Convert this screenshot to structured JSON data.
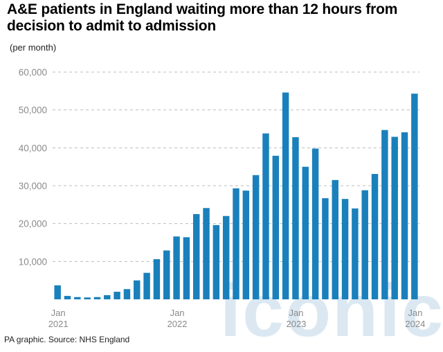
{
  "header": {
    "title": "A&E patients in England waiting more than 12 hours from decision to admit to admission",
    "unit": "(per month)"
  },
  "footer": {
    "source": "PA graphic. Source: NHS England"
  },
  "watermark": {
    "text": "iconic"
  },
  "colors": {
    "bar": "#1a80bb",
    "grid": "#bdbdbd",
    "tick_text": "#8a8a8a"
  },
  "chart_data": {
    "type": "bar",
    "title": "A&E patients in England waiting more than 12 hours from decision to admit to admission",
    "ylabel": "(per month)",
    "ylim": [
      0,
      60000
    ],
    "yticks": [
      10000,
      20000,
      30000,
      40000,
      50000,
      60000
    ],
    "ytick_labels": [
      "10,000",
      "20,000",
      "30,000",
      "40,000",
      "50,000",
      "60,000"
    ],
    "grid": true,
    "categories": [
      "Jan 2021",
      "Feb 2021",
      "Mar 2021",
      "Apr 2021",
      "May 2021",
      "Jun 2021",
      "Jul 2021",
      "Aug 2021",
      "Sep 2021",
      "Oct 2021",
      "Nov 2021",
      "Dec 2021",
      "Jan 2022",
      "Feb 2022",
      "Mar 2022",
      "Apr 2022",
      "May 2022",
      "Jun 2022",
      "Jul 2022",
      "Aug 2022",
      "Sep 2022",
      "Oct 2022",
      "Nov 2022",
      "Dec 2022",
      "Jan 2023",
      "Feb 2023",
      "Mar 2023",
      "Apr 2023",
      "May 2023",
      "Jun 2023",
      "Jul 2023",
      "Aug 2023",
      "Sep 2023",
      "Oct 2023",
      "Nov 2023",
      "Dec 2023",
      "Jan 2024"
    ],
    "values": [
      3700,
      900,
      600,
      500,
      600,
      1100,
      2000,
      2700,
      5000,
      7000,
      10600,
      12900,
      16600,
      16400,
      22500,
      24100,
      19600,
      22000,
      29300,
      28700,
      32800,
      43800,
      37900,
      54600,
      42800,
      35000,
      39800,
      26700,
      31500,
      26500,
      24000,
      28800,
      33100,
      44700,
      42900,
      44100,
      54300
    ],
    "xtick_labels": [
      {
        "index": 0,
        "month": "Jan",
        "year": "2021"
      },
      {
        "index": 12,
        "month": "Jan",
        "year": "2022"
      },
      {
        "index": 24,
        "month": "Jan",
        "year": "2023"
      },
      {
        "index": 36,
        "month": "Jan",
        "year": "2024"
      }
    ]
  }
}
